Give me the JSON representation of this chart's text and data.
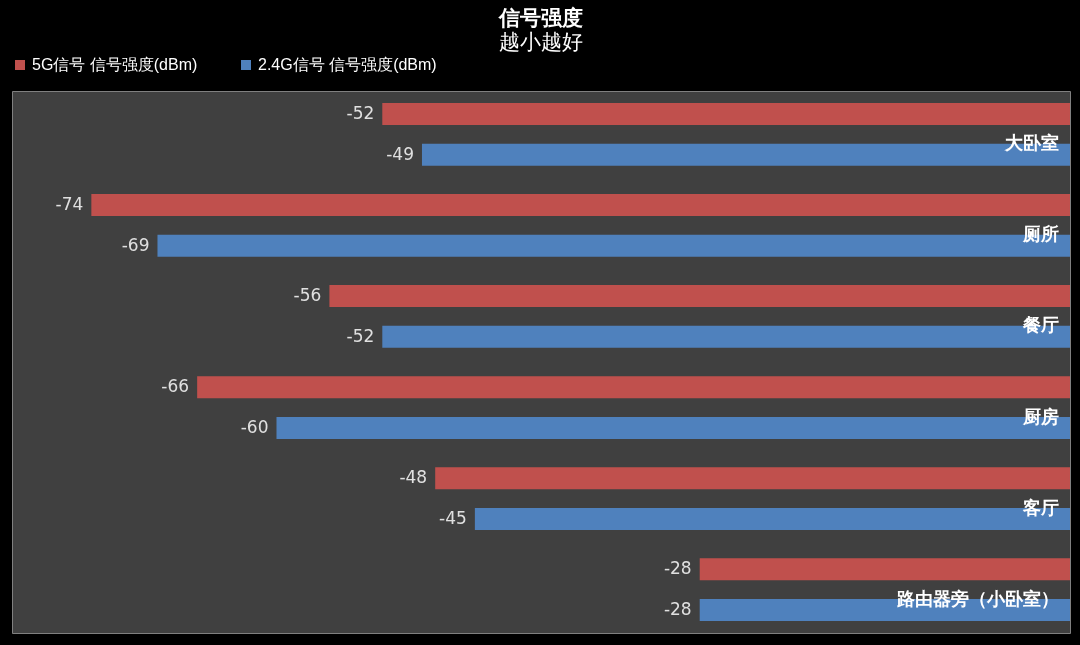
{
  "chart_data": {
    "type": "bar",
    "orientation": "horizontal",
    "title": "信号强度",
    "subtitle": "越小越好",
    "categories": [
      "大卧室",
      "厕所",
      "餐厅",
      "厨房",
      "客厅",
      "路由器旁（小卧室）"
    ],
    "series": [
      {
        "name": "5G信号 信号强度(dBm)",
        "color": "#c0504d",
        "values": [
          -52,
          -74,
          -56,
          -66,
          -48,
          -28
        ]
      },
      {
        "name": "2.4G信号 信号强度(dBm)",
        "color": "#4f81bd",
        "values": [
          -49,
          -69,
          -52,
          -60,
          -45,
          -28
        ]
      }
    ],
    "xlim": [
      -80,
      0
    ],
    "data_labels": true,
    "legend": "top",
    "grid": false,
    "tick_labels": "y"
  }
}
